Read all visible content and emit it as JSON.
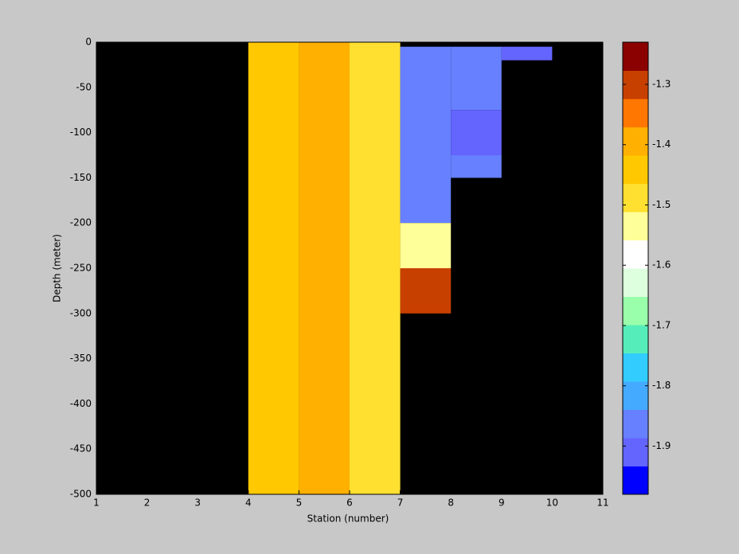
{
  "chart_data": {
    "type": "heatmap",
    "xlabel": "Station (number)",
    "ylabel": "Depth (meter)",
    "xlim": [
      1,
      11
    ],
    "xticks": [
      1,
      2,
      3,
      4,
      5,
      6,
      7,
      8,
      9,
      10,
      11
    ],
    "ylim": [
      -500,
      0
    ],
    "yticks": [
      0,
      -50,
      -100,
      -150,
      -200,
      -250,
      -300,
      -350,
      -400,
      -450,
      -500
    ],
    "background": "#000000",
    "cells": [
      {
        "x": [
          4,
          5
        ],
        "y": [
          -500,
          0
        ],
        "value": -1.42
      },
      {
        "x": [
          5,
          6
        ],
        "y": [
          -500,
          0
        ],
        "value": -1.39
      },
      {
        "x": [
          6,
          7
        ],
        "y": [
          -500,
          0
        ],
        "value": -1.47
      },
      {
        "x": [
          7,
          8
        ],
        "y": [
          -200,
          -5
        ],
        "value": -1.87
      },
      {
        "x": [
          7,
          8
        ],
        "y": [
          -250,
          -200
        ],
        "value": -1.53
      },
      {
        "x": [
          7,
          8
        ],
        "y": [
          -300,
          -250
        ],
        "value": -1.28
      },
      {
        "x": [
          8,
          9
        ],
        "y": [
          -75,
          -5
        ],
        "value": -1.87
      },
      {
        "x": [
          8,
          9
        ],
        "y": [
          -125,
          -75
        ],
        "value": -1.9
      },
      {
        "x": [
          8,
          9
        ],
        "y": [
          -150,
          -125
        ],
        "value": -1.86
      },
      {
        "x": [
          9,
          10
        ],
        "y": [
          -20,
          -5
        ],
        "value": -1.9
      }
    ],
    "clim": [
      -1.98,
      -1.23
    ],
    "cticks": [
      -1.3,
      -1.4,
      -1.5,
      -1.6,
      -1.7,
      -1.8,
      -1.9
    ],
    "colormap": [
      "#0000ff",
      "#6464ff",
      "#6680ff",
      "#44aaff",
      "#33ccff",
      "#55eebb",
      "#99ffaa",
      "#ddffdd",
      "#ffffff",
      "#ffff99",
      "#ffe030",
      "#ffc800",
      "#ffb000",
      "#ff7700",
      "#c84000",
      "#8b0000"
    ]
  }
}
